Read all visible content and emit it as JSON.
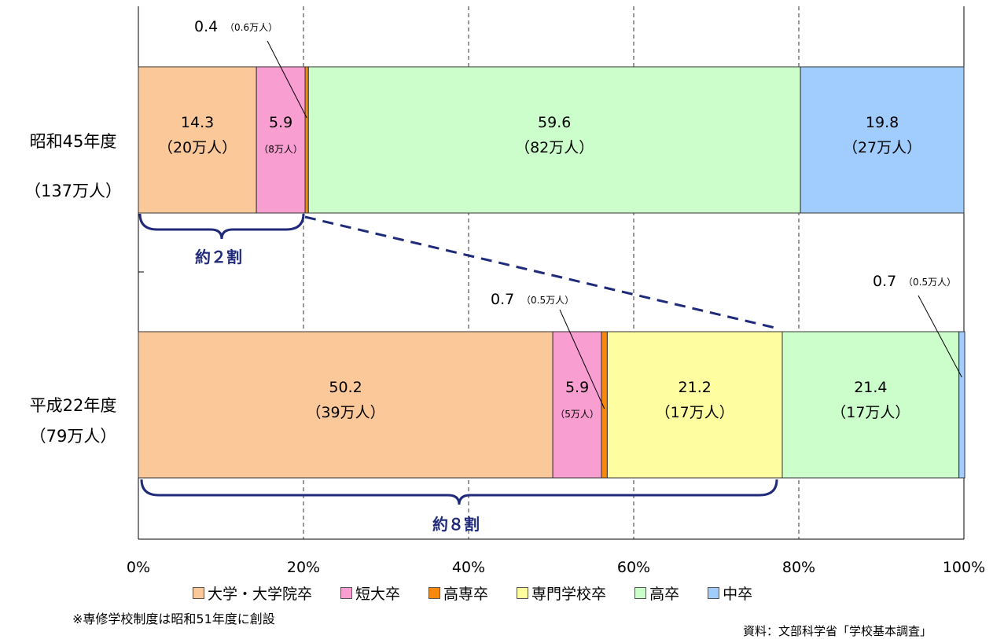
{
  "chart_data": {
    "type": "bar",
    "orientation": "horizontal-stacked-100",
    "x_ticks": [
      "0%",
      "20%",
      "40%",
      "60%",
      "80%",
      "100%"
    ],
    "xlim": [
      0,
      100
    ],
    "grid": "vertical dashed",
    "legend_placement": "bottom",
    "series": [
      {
        "name": "大学・大学院卒",
        "color": "#FBC89A"
      },
      {
        "name": "短大卒",
        "color": "#F99ED0"
      },
      {
        "name": "高専卒",
        "color": "#F7890F"
      },
      {
        "name": "専門学校卒",
        "color": "#FEFEA0"
      },
      {
        "name": "高卒",
        "color": "#CCFECC"
      },
      {
        "name": "中卒",
        "color": "#A0CCFE"
      }
    ],
    "rows": [
      {
        "label1": "昭和45年度",
        "label2": "（137万人）",
        "values": [
          14.3,
          5.9,
          0.4,
          0,
          59.6,
          19.8
        ],
        "labels": [
          {
            "pct": "14.3",
            "count": "（20万人）"
          },
          {
            "pct": "5.9",
            "count": "（8万人）"
          },
          {
            "pct": "0.4",
            "count": "（0.6万人）"
          },
          null,
          {
            "pct": "59.6",
            "count": "（82万人）"
          },
          {
            "pct": "19.8",
            "count": "（27万人）"
          }
        ],
        "brace_label": "約２割"
      },
      {
        "label1": "平成22年度",
        "label2": "（79万人）",
        "values": [
          50.2,
          5.9,
          0.7,
          21.2,
          21.4,
          0.7
        ],
        "labels": [
          {
            "pct": "50.2",
            "count": "（39万人）"
          },
          {
            "pct": "5.9",
            "count": "（5万人）"
          },
          {
            "pct": "0.7",
            "count": "（0.5万人）"
          },
          {
            "pct": "21.2",
            "count": "（17万人）"
          },
          {
            "pct": "21.4",
            "count": "（17万人）"
          },
          {
            "pct": "0.7",
            "count": "（0.5万人）"
          }
        ],
        "brace_label": "約８割"
      }
    ]
  },
  "legend": [
    {
      "label": "大学・大学院卒",
      "color": "#FBC89A"
    },
    {
      "label": "短大卒",
      "color": "#F99ED0"
    },
    {
      "label": "高専卒",
      "color": "#F7890F"
    },
    {
      "label": "専門学校卒",
      "color": "#FEFEA0"
    },
    {
      "label": "高卒",
      "color": "#CCFECC"
    },
    {
      "label": "中卒",
      "color": "#A0CCFE"
    }
  ],
  "footnote": "※専修学校制度は昭和51年度に創設",
  "source": "資料：文部科学省「学校基本調査」",
  "colors": {
    "brace": "#1F2A7A",
    "axis": "#000000"
  }
}
